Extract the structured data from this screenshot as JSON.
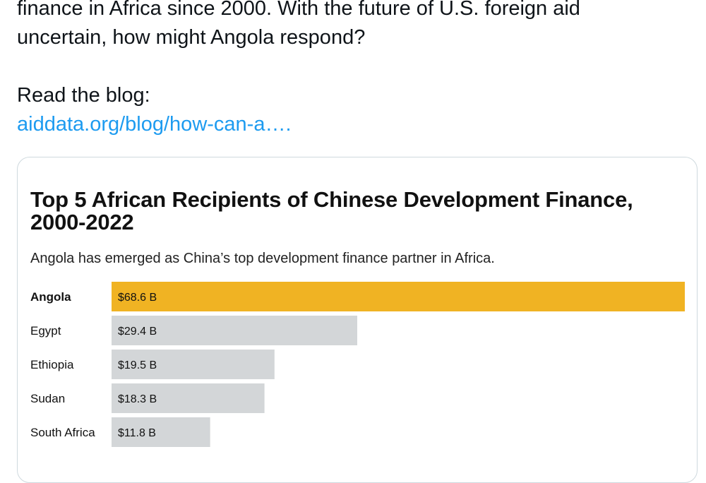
{
  "tweet": {
    "line1": "finance in Africa since 2000. With the future of U.S. foreign aid",
    "line2": "uncertain, how might Angola respond?",
    "read_label": "Read the blog:",
    "link_text": "aiddata.org/blog/how-can-a…."
  },
  "chart_data": {
    "type": "bar",
    "title": "Top 5 African Recipients of Chinese Development Finance, 2000-2022",
    "subtitle": "Angola has emerged as China’s top development finance partner in Africa.",
    "categories": [
      "Angola",
      "Egypt",
      "Ethiopia",
      "Sudan",
      "South Africa"
    ],
    "values": [
      68.6,
      29.4,
      19.5,
      18.3,
      11.8
    ],
    "value_labels": [
      "$68.6 B",
      "$29.4 B",
      "$19.5 B",
      "$18.3 B",
      "$11.8 B"
    ],
    "highlight_category": "Angola",
    "colors": {
      "highlight": "#f0b323",
      "default": "#d3d6d8",
      "text": "#111111"
    },
    "orientation": "horizontal"
  }
}
